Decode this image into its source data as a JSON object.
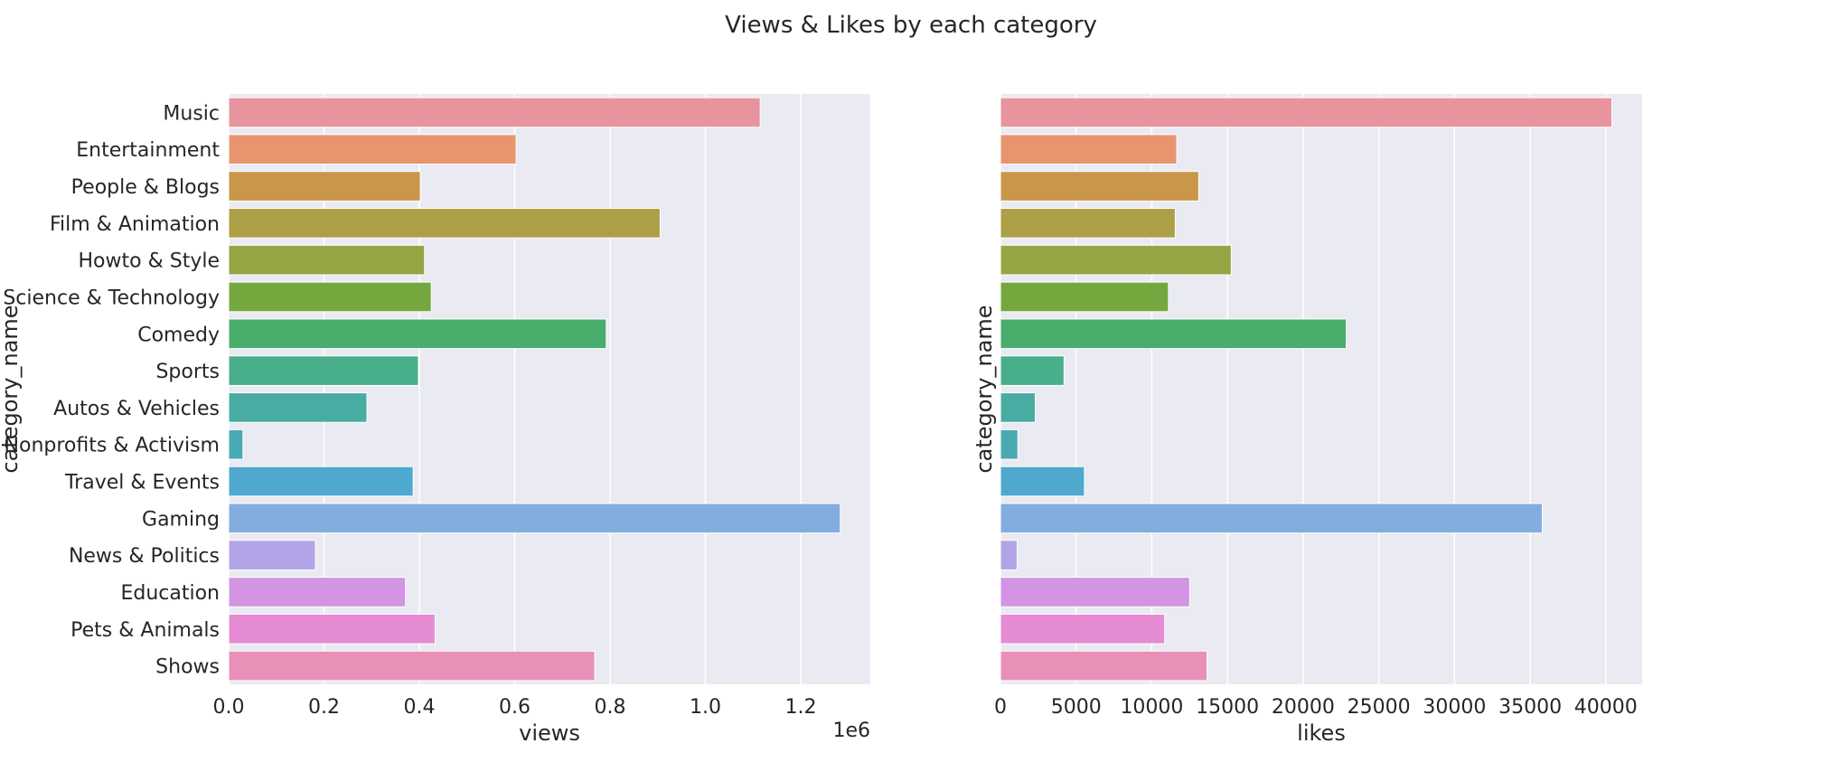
{
  "title": "Views & Likes by each category",
  "chart_data": [
    {
      "type": "bar",
      "orientation": "horizontal",
      "categories": [
        "Music",
        "Entertainment",
        "People & Blogs",
        "Film & Animation",
        "Howto & Style",
        "Science & Technology",
        "Comedy",
        "Sports",
        "Autos & Vehicles",
        "Nonprofits & Activism",
        "Travel & Events",
        "Gaming",
        "News & Politics",
        "Education",
        "Pets & Animals",
        "Shows"
      ],
      "values": [
        1115000,
        603000,
        402000,
        905000,
        411000,
        425000,
        792000,
        398000,
        290000,
        30000,
        387000,
        1283000,
        182000,
        371000,
        433000,
        768000
      ],
      "xlabel": "views",
      "ylabel": "category_name",
      "xlim": [
        0,
        1346000
      ],
      "xticks": [
        "0.0",
        "0.2",
        "0.4",
        "0.6",
        "0.8",
        "1.0",
        "1.2"
      ],
      "xtick_values": [
        0,
        200000,
        400000,
        600000,
        800000,
        1000000,
        1200000
      ],
      "offset_text": "1e6",
      "grid": true
    },
    {
      "type": "bar",
      "orientation": "horizontal",
      "categories": [
        "Music",
        "Entertainment",
        "People & Blogs",
        "Film & Animation",
        "Howto & Style",
        "Science & Technology",
        "Comedy",
        "Sports",
        "Autos & Vehicles",
        "Nonprofits & Activism",
        "Travel & Events",
        "Gaming",
        "News & Politics",
        "Education",
        "Pets & Animals",
        "Shows"
      ],
      "values": [
        40400,
        11650,
        13100,
        11550,
        15250,
        11100,
        22850,
        4200,
        2300,
        1150,
        5550,
        35800,
        1100,
        12500,
        10850,
        13650
      ],
      "xlabel": "likes",
      "ylabel": "category_name",
      "xlim": [
        0,
        42400
      ],
      "xticks": [
        "0",
        "5000",
        "10000",
        "15000",
        "20000",
        "25000",
        "30000",
        "35000",
        "40000"
      ],
      "xtick_values": [
        0,
        5000,
        10000,
        15000,
        20000,
        25000,
        30000,
        35000,
        40000
      ],
      "grid": true
    }
  ],
  "colors": {
    "background": "#eaeaf2",
    "grid": "#ffffff",
    "bars": [
      "#e8949f",
      "#e8956f",
      "#c9964a",
      "#ad9f46",
      "#97a544",
      "#74a83f",
      "#48ad6b",
      "#48ae8c",
      "#49aca2",
      "#4aaab3",
      "#4fa8ce",
      "#84addf",
      "#b2a4e6",
      "#d394e4",
      "#e48bd4",
      "#e990b8"
    ]
  }
}
